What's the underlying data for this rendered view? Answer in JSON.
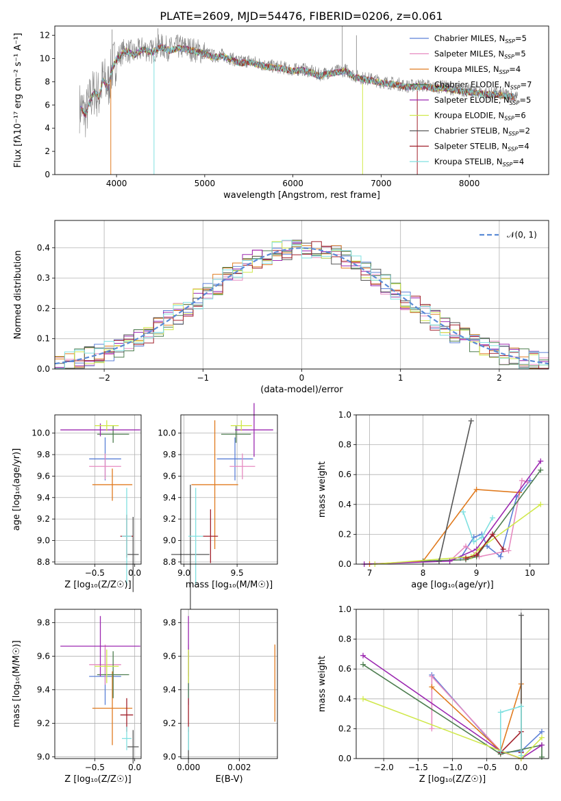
{
  "colors": [
    "#5a7fd6",
    "#e68ac0",
    "#e07a1e",
    "#4d7d4f",
    "#9b27b0",
    "#d0e84a",
    "#555555",
    "#a11f2a",
    "#7fe0e0"
  ],
  "title": "PLATE=2609, MJD=54476, FIBERID=0206, z=0.061",
  "chart_data": [
    {
      "id": "spectrum",
      "type": "line",
      "xlabel": "wavelength [Angstrom, rest frame]",
      "ylabel": "Flux [fλ10⁻¹⁷ erg cm⁻² s⁻¹ A⁻¹]",
      "xlim": [
        3300,
        8900
      ],
      "ylim": [
        0,
        12.8
      ],
      "xticks": [
        4000,
        5000,
        6000,
        7000,
        8000
      ],
      "yticks": [
        0,
        2,
        4,
        6,
        8,
        10,
        12
      ],
      "legend": [
        "Chabrier MILES, N_SSP=5",
        "Salpeter MILES, N_SSP=5",
        "Kroupa MILES, N_SSP=4",
        "Chabrier ELODIE, N_SSP=7",
        "Salpeter ELODIE, N_SSP=5",
        "Kroupa ELODIE, N_SSP=6",
        "Chabrier STELIB, N_SSP=2",
        "Salpeter STELIB, N_SSP=4",
        "Kroupa STELIB, N_SSP=4"
      ],
      "legend_position": "upper right",
      "data_wavelength": [
        3600,
        3650,
        3700,
        3750,
        3800,
        3850,
        3900,
        3950,
        4000,
        4100,
        4200,
        4300,
        4400,
        4500,
        4600,
        4700,
        4800,
        4900,
        5000,
        5100,
        5200,
        5300,
        5400,
        5500,
        5600,
        5700,
        5800,
        5900,
        6000,
        6100,
        6200,
        6300,
        6400,
        6500,
        6600,
        6700,
        6800,
        6900,
        7000,
        7100,
        7200,
        7300,
        7400,
        7500,
        7600,
        7700,
        7800,
        7900,
        8000,
        8100,
        8200,
        8300,
        8400,
        8500,
        8550
      ],
      "data_flux": [
        5.8,
        5.2,
        6.5,
        7.2,
        6.8,
        8.3,
        7.5,
        9.2,
        10.0,
        10.8,
        10.4,
        10.9,
        10.6,
        11.1,
        10.8,
        11.0,
        10.9,
        10.7,
        10.5,
        10.2,
        10.3,
        10.0,
        9.7,
        9.8,
        9.6,
        9.4,
        9.3,
        9.2,
        9.0,
        9.1,
        8.9,
        8.6,
        8.8,
        8.9,
        9.0,
        8.5,
        8.3,
        8.2,
        8.0,
        7.9,
        7.8,
        7.6,
        7.7,
        7.7,
        7.5,
        7.6,
        7.4,
        7.3,
        7.2,
        7.1,
        7.0,
        7.0,
        6.9,
        6.8,
        6.6
      ],
      "spikes": [
        {
          "x": 6560,
          "y": 12.8
        },
        {
          "x": 6720,
          "y": 12.0
        },
        {
          "x": 3950,
          "y": 12.5
        },
        {
          "x": 4470,
          "y": 12.6
        }
      ]
    },
    {
      "id": "residuals",
      "type": "step",
      "xlabel": "(data-model)/error",
      "ylabel": "Normed distribution",
      "xlim": [
        -2.5,
        2.5
      ],
      "ylim": [
        0,
        0.49
      ],
      "xticks": [
        -2,
        -1,
        0,
        1,
        2
      ],
      "yticks": [
        0.0,
        0.1,
        0.2,
        0.3,
        0.4
      ],
      "bin_width": 0.1,
      "legend": [
        "𝒩(0, 1)"
      ],
      "legend_position": "upper right"
    },
    {
      "id": "age_vs_Z",
      "type": "errorbar",
      "xlabel": "Z [log₁₀(Z/Z☉)]",
      "ylabel": "age  [log₁₀(age/yr)]",
      "xlim": [
        -1.0,
        0.08
      ],
      "ylim": [
        8.78,
        10.17
      ],
      "xticks": [
        -0.5,
        0.0
      ],
      "yticks": [
        8.8,
        9.0,
        9.2,
        9.4,
        9.6,
        9.8,
        10.0
      ],
      "points": [
        {
          "x": -0.37,
          "xerr": 0.2,
          "y": 9.76,
          "yerr": 0.2
        },
        {
          "x": -0.37,
          "xerr": 0.2,
          "y": 9.69,
          "yerr": 0.12
        },
        {
          "x": -0.28,
          "xerr": 0.25,
          "y": 9.52,
          "yerr": 0.15
        },
        {
          "x": -0.27,
          "xerr": 0.2,
          "y": 9.99,
          "yerr": 0.08
        },
        {
          "x": -0.43,
          "xerr": 0.5,
          "y": 10.03,
          "yerr": 0.06
        },
        {
          "x": -0.35,
          "xerr": 0.15,
          "y": 10.07,
          "yerr": 0.05
        },
        {
          "x": -0.02,
          "xerr": 0.07,
          "y": 8.87,
          "yerr": 0.35
        },
        {
          "x": -0.1,
          "xerr": 0.08,
          "y": 9.04,
          "yerr": 0.2
        },
        {
          "x": -0.1,
          "xerr": 0.06,
          "y": 9.04,
          "yerr": 0.45
        }
      ]
    },
    {
      "id": "age_vs_mass",
      "type": "errorbar",
      "xlabel": "mass [log₁₀(M/M☉)]",
      "ylabel": "",
      "xlim": [
        8.97,
        9.88
      ],
      "ylim": [
        8.78,
        10.17
      ],
      "xticks": [
        9.0,
        9.5
      ],
      "yticks": [
        8.8,
        9.0,
        9.2,
        9.4,
        9.6,
        9.8,
        10.0
      ],
      "points": [
        {
          "x": 9.48,
          "xerr": 0.17,
          "y": 9.76,
          "yerr": 0.2
        },
        {
          "x": 9.55,
          "xerr": 0.12,
          "y": 9.69,
          "yerr": 0.12
        },
        {
          "x": 9.29,
          "xerr": 0.22,
          "y": 9.52,
          "yerr": 0.6
        },
        {
          "x": 9.49,
          "xerr": 0.14,
          "y": 9.99,
          "yerr": 0.08
        },
        {
          "x": 9.66,
          "xerr": 0.18,
          "y": 10.03,
          "yerr": 0.25
        },
        {
          "x": 9.54,
          "xerr": 0.1,
          "y": 10.07,
          "yerr": 0.05
        },
        {
          "x": 9.06,
          "xerr": 0.18,
          "y": 8.87,
          "yerr": 0.65
        },
        {
          "x": 9.25,
          "xerr": 0.07,
          "y": 9.04,
          "yerr": 0.25
        },
        {
          "x": 9.11,
          "xerr": 0.07,
          "y": 9.04,
          "yerr": 0.45
        }
      ]
    },
    {
      "id": "weight_vs_age",
      "type": "line",
      "xlabel": "age  [log₁₀(age/yr)]",
      "ylabel": "mass weight",
      "xlim": [
        6.75,
        10.35
      ],
      "ylim": [
        0.0,
        1.0
      ],
      "xticks": [
        7,
        8,
        9,
        10
      ],
      "yticks": [
        0.0,
        0.2,
        0.4,
        0.6,
        0.8,
        1.0
      ],
      "series": [
        {
          "x": [
            8.7,
            8.95,
            9.1,
            9.2,
            9.45,
            9.75,
            10.0
          ],
          "y": [
            0.04,
            0.18,
            0.2,
            0.12,
            0.05,
            0.45,
            0.56
          ]
        },
        {
          "x": [
            8.5,
            8.8,
            9.05,
            9.6,
            9.85,
            9.95
          ],
          "y": [
            0.02,
            0.12,
            0.05,
            0.09,
            0.56,
            0.55
          ]
        },
        {
          "x": [
            7.0,
            8.0,
            9.0,
            9.8
          ],
          "y": [
            0.0,
            0.02,
            0.5,
            0.48
          ]
        },
        {
          "x": [
            8.0,
            8.8,
            9.0,
            10.2
          ],
          "y": [
            0.02,
            0.03,
            0.05,
            0.63
          ]
        },
        {
          "x": [
            6.9,
            8.5,
            9.0,
            10.2
          ],
          "y": [
            0.0,
            0.02,
            0.1,
            0.69
          ]
        },
        {
          "x": [
            7.1,
            8.9,
            9.05,
            10.2
          ],
          "y": [
            0.0,
            0.05,
            0.1,
            0.4
          ]
        },
        {
          "x": [
            8.3,
            8.9
          ],
          "y": [
            0.02,
            0.96
          ]
        },
        {
          "x": [
            8.8,
            9.0,
            9.3,
            9.5
          ],
          "y": [
            0.04,
            0.06,
            0.2,
            0.1
          ]
        },
        {
          "x": [
            8.75,
            8.95,
            9.1,
            9.3
          ],
          "y": [
            0.35,
            0.15,
            0.18,
            0.31
          ]
        }
      ]
    },
    {
      "id": "mass_vs_Z",
      "type": "errorbar",
      "xlabel": "Z [log₁₀(Z/Z☉)]",
      "ylabel": "mass [log₁₀(M/M☉)]",
      "xlim": [
        -1.0,
        0.08
      ],
      "ylim": [
        8.99,
        9.88
      ],
      "xticks": [
        -0.5,
        0.0
      ],
      "yticks": [
        9.0,
        9.2,
        9.4,
        9.6,
        9.8
      ],
      "points": [
        {
          "x": -0.37,
          "xerr": 0.2,
          "y": 9.48,
          "yerr": 0.17
        },
        {
          "x": -0.37,
          "xerr": 0.2,
          "y": 9.55,
          "yerr": 0.12
        },
        {
          "x": -0.28,
          "xerr": 0.25,
          "y": 9.29,
          "yerr": 0.22
        },
        {
          "x": -0.27,
          "xerr": 0.2,
          "y": 9.49,
          "yerr": 0.14
        },
        {
          "x": -0.43,
          "xerr": 0.5,
          "y": 9.66,
          "yerr": 0.18
        },
        {
          "x": -0.35,
          "xerr": 0.15,
          "y": 9.54,
          "yerr": 0.1
        },
        {
          "x": -0.02,
          "xerr": 0.07,
          "y": 9.06,
          "yerr": 0.1
        },
        {
          "x": -0.1,
          "xerr": 0.08,
          "y": 9.25,
          "yerr": 0.1
        },
        {
          "x": -0.1,
          "xerr": 0.06,
          "y": 9.11,
          "yerr": 0.07
        }
      ]
    },
    {
      "id": "mass_vs_ebv",
      "type": "errorbar",
      "xlabel": "E(B-V)",
      "ylabel": "",
      "xlim": [
        -0.0003,
        0.0035
      ],
      "ylim": [
        8.99,
        9.88
      ],
      "xticks": [
        0.0,
        0.002
      ],
      "yticks": [
        9.0,
        9.2,
        9.4,
        9.6,
        9.8
      ],
      "points": [
        {
          "x": 0.0,
          "y": 9.48,
          "yerr": 0.17
        },
        {
          "x": 0.0,
          "y": 9.55,
          "yerr": 0.12
        },
        {
          "x": 0.0034,
          "y": 9.44,
          "yerr": 0.23
        },
        {
          "x": 0.0,
          "y": 9.49,
          "yerr": 0.14
        },
        {
          "x": 0.0,
          "y": 9.66,
          "yerr": 0.18
        },
        {
          "x": 0.0,
          "y": 9.54,
          "yerr": 0.1
        },
        {
          "x": 0.0,
          "y": 9.06,
          "yerr": 0.1
        },
        {
          "x": 0.0,
          "y": 9.25,
          "yerr": 0.1
        },
        {
          "x": 0.0,
          "y": 9.11,
          "yerr": 0.07
        }
      ]
    },
    {
      "id": "weight_vs_Z",
      "type": "line",
      "xlabel": "Z [log₁₀(Z/Z☉)]",
      "ylabel": "mass weight",
      "xlim": [
        -2.4,
        0.4
      ],
      "ylim": [
        0.0,
        1.0
      ],
      "xticks": [
        -2.0,
        -1.5,
        -1.0,
        -0.5,
        0.0
      ],
      "yticks": [
        0.0,
        0.2,
        0.4,
        0.6,
        0.8,
        1.0
      ],
      "series": [
        {
          "x": [
            -1.3,
            -0.3,
            0.0,
            0.3
          ],
          "y": [
            0.56,
            0.04,
            0.05,
            0.18
          ]
        },
        {
          "x": [
            -1.3,
            -1.3,
            -0.3,
            0.0
          ],
          "y": [
            0.2,
            0.55,
            0.05,
            0.0
          ]
        },
        {
          "x": [
            -1.3,
            -0.3,
            0.0,
            0.0
          ],
          "y": [
            0.48,
            0.05,
            0.5,
            0.0
          ]
        },
        {
          "x": [
            -2.3,
            -0.3,
            0.3,
            0.3
          ],
          "y": [
            0.63,
            0.03,
            0.09,
            0.01
          ]
        },
        {
          "x": [
            -2.3,
            -0.3,
            0.0,
            0.3
          ],
          "y": [
            0.69,
            0.05,
            0.0,
            0.09
          ]
        },
        {
          "x": [
            -2.3,
            0.0,
            0.3
          ],
          "y": [
            0.4,
            0.0,
            0.14
          ]
        },
        {
          "x": [
            0.0,
            0.0
          ],
          "y": [
            0.04,
            0.96
          ]
        },
        {
          "x": [
            -0.3,
            0.0,
            0.0
          ],
          "y": [
            0.04,
            0.18,
            0.04
          ]
        },
        {
          "x": [
            -0.3,
            -0.3,
            0.0,
            0.0
          ],
          "y": [
            0.05,
            0.31,
            0.35,
            0.02
          ]
        }
      ]
    }
  ]
}
